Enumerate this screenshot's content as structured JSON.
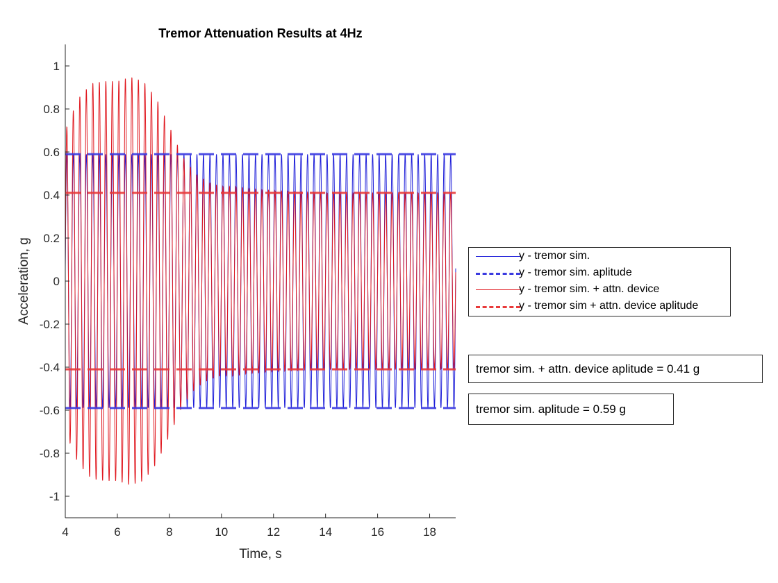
{
  "chart_data": {
    "type": "line",
    "title": "Tremor Attenuation Results at 4Hz",
    "xlabel": "Time, s",
    "ylabel": "Acceleration, g",
    "xlim": [
      4,
      19
    ],
    "ylim": [
      -1.1,
      1.1
    ],
    "xticks": [
      4,
      6,
      8,
      10,
      12,
      14,
      16,
      18
    ],
    "yticks": [
      -1,
      -0.8,
      -0.6,
      -0.4,
      -0.2,
      0,
      0.2,
      0.4,
      0.6,
      0.8,
      1
    ],
    "grid": false,
    "legend_placement": "outside-right",
    "frequency_hz": 4,
    "series": [
      {
        "name": "y - tremor sim.",
        "style": "solid",
        "color": "#1f1fd9",
        "kind": "sine",
        "amplitude": 0.59
      },
      {
        "name": "y - tremor sim. aplitude",
        "style": "dashed",
        "color": "#3a3ae0",
        "kind": "hlines",
        "values": [
          0.59,
          -0.59
        ]
      },
      {
        "name": "y - tremor sim. + attn. device",
        "style": "solid",
        "color": "#e0181f",
        "kind": "sine",
        "envelope": {
          "t": [
            4.0,
            4.5,
            5.0,
            5.5,
            6.0,
            6.5,
            7.0,
            7.5,
            8.0,
            8.5,
            9.0,
            9.5,
            10.0,
            10.5,
            11.0,
            12.0,
            14.0,
            16.0,
            19.0
          ],
          "a": [
            0.7,
            0.85,
            0.92,
            0.93,
            0.93,
            0.95,
            0.93,
            0.85,
            0.72,
            0.58,
            0.5,
            0.46,
            0.44,
            0.44,
            0.43,
            0.42,
            0.41,
            0.41,
            0.41
          ]
        }
      },
      {
        "name": "y - tremor sim + attn. device aplitude",
        "style": "dashed",
        "color": "#e83a3a",
        "kind": "hlines",
        "values": [
          0.41,
          -0.41
        ]
      }
    ],
    "annotations": [
      "tremor sim. + attn. device aplitude = 0.41 g",
      "tremor sim. aplitude = 0.59 g"
    ]
  }
}
